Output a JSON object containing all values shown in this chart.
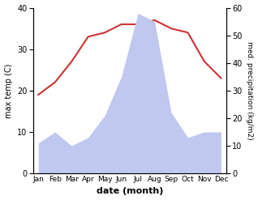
{
  "months": [
    "Jan",
    "Feb",
    "Mar",
    "Apr",
    "May",
    "Jun",
    "Jul",
    "Aug",
    "Sep",
    "Oct",
    "Nov",
    "Dec"
  ],
  "temperature": [
    19,
    22,
    27,
    33,
    34,
    36,
    36,
    37,
    35,
    34,
    27,
    23
  ],
  "precipitation": [
    11,
    15,
    10,
    13,
    21,
    35,
    58,
    55,
    22,
    13,
    15,
    15
  ],
  "temp_color": "#cc3333",
  "precip_color": "#c0c8f0",
  "left_ylabel": "max temp (C)",
  "right_ylabel": "med. precipitation (kg/m2)",
  "xlabel": "date (month)",
  "ylim_left": [
    0,
    40
  ],
  "ylim_right": [
    0,
    60
  ],
  "yticks_left": [
    0,
    10,
    20,
    30,
    40
  ],
  "yticks_right": [
    0,
    10,
    20,
    30,
    40,
    50,
    60
  ],
  "background_color": "#ffffff"
}
